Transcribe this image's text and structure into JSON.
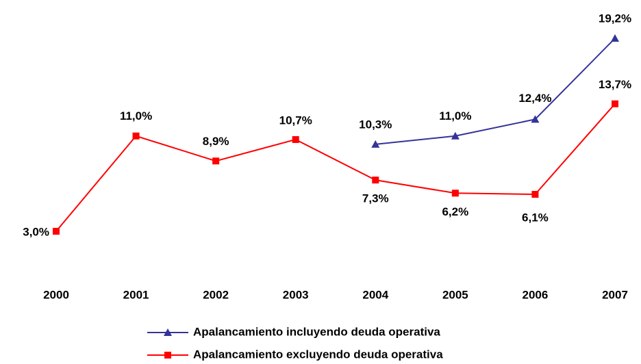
{
  "chart_data": {
    "type": "line",
    "categories": [
      "2000",
      "2001",
      "2002",
      "2003",
      "2004",
      "2005",
      "2006",
      "2007"
    ],
    "series": [
      {
        "name": "Apalancamiento incluyendo deuda operativa",
        "color": "#333399",
        "marker": "triangle",
        "values": [
          null,
          null,
          null,
          null,
          10.3,
          11.0,
          12.4,
          19.2
        ],
        "value_labels": [
          null,
          null,
          null,
          null,
          "10,3%",
          "11,0%",
          "12,4%",
          "19,2%"
        ]
      },
      {
        "name": "Apalancamiento excluyendo deuda operativa",
        "color": "#ff0000",
        "marker": "square",
        "values": [
          3.0,
          11.0,
          8.9,
          10.7,
          7.3,
          6.2,
          6.1,
          13.7
        ],
        "value_labels": [
          "3,0%",
          "11,0%",
          "8,9%",
          "10,7%",
          "7,3%",
          "6,2%",
          "6,1%",
          "13,7%"
        ]
      }
    ],
    "legend": "bottom"
  }
}
